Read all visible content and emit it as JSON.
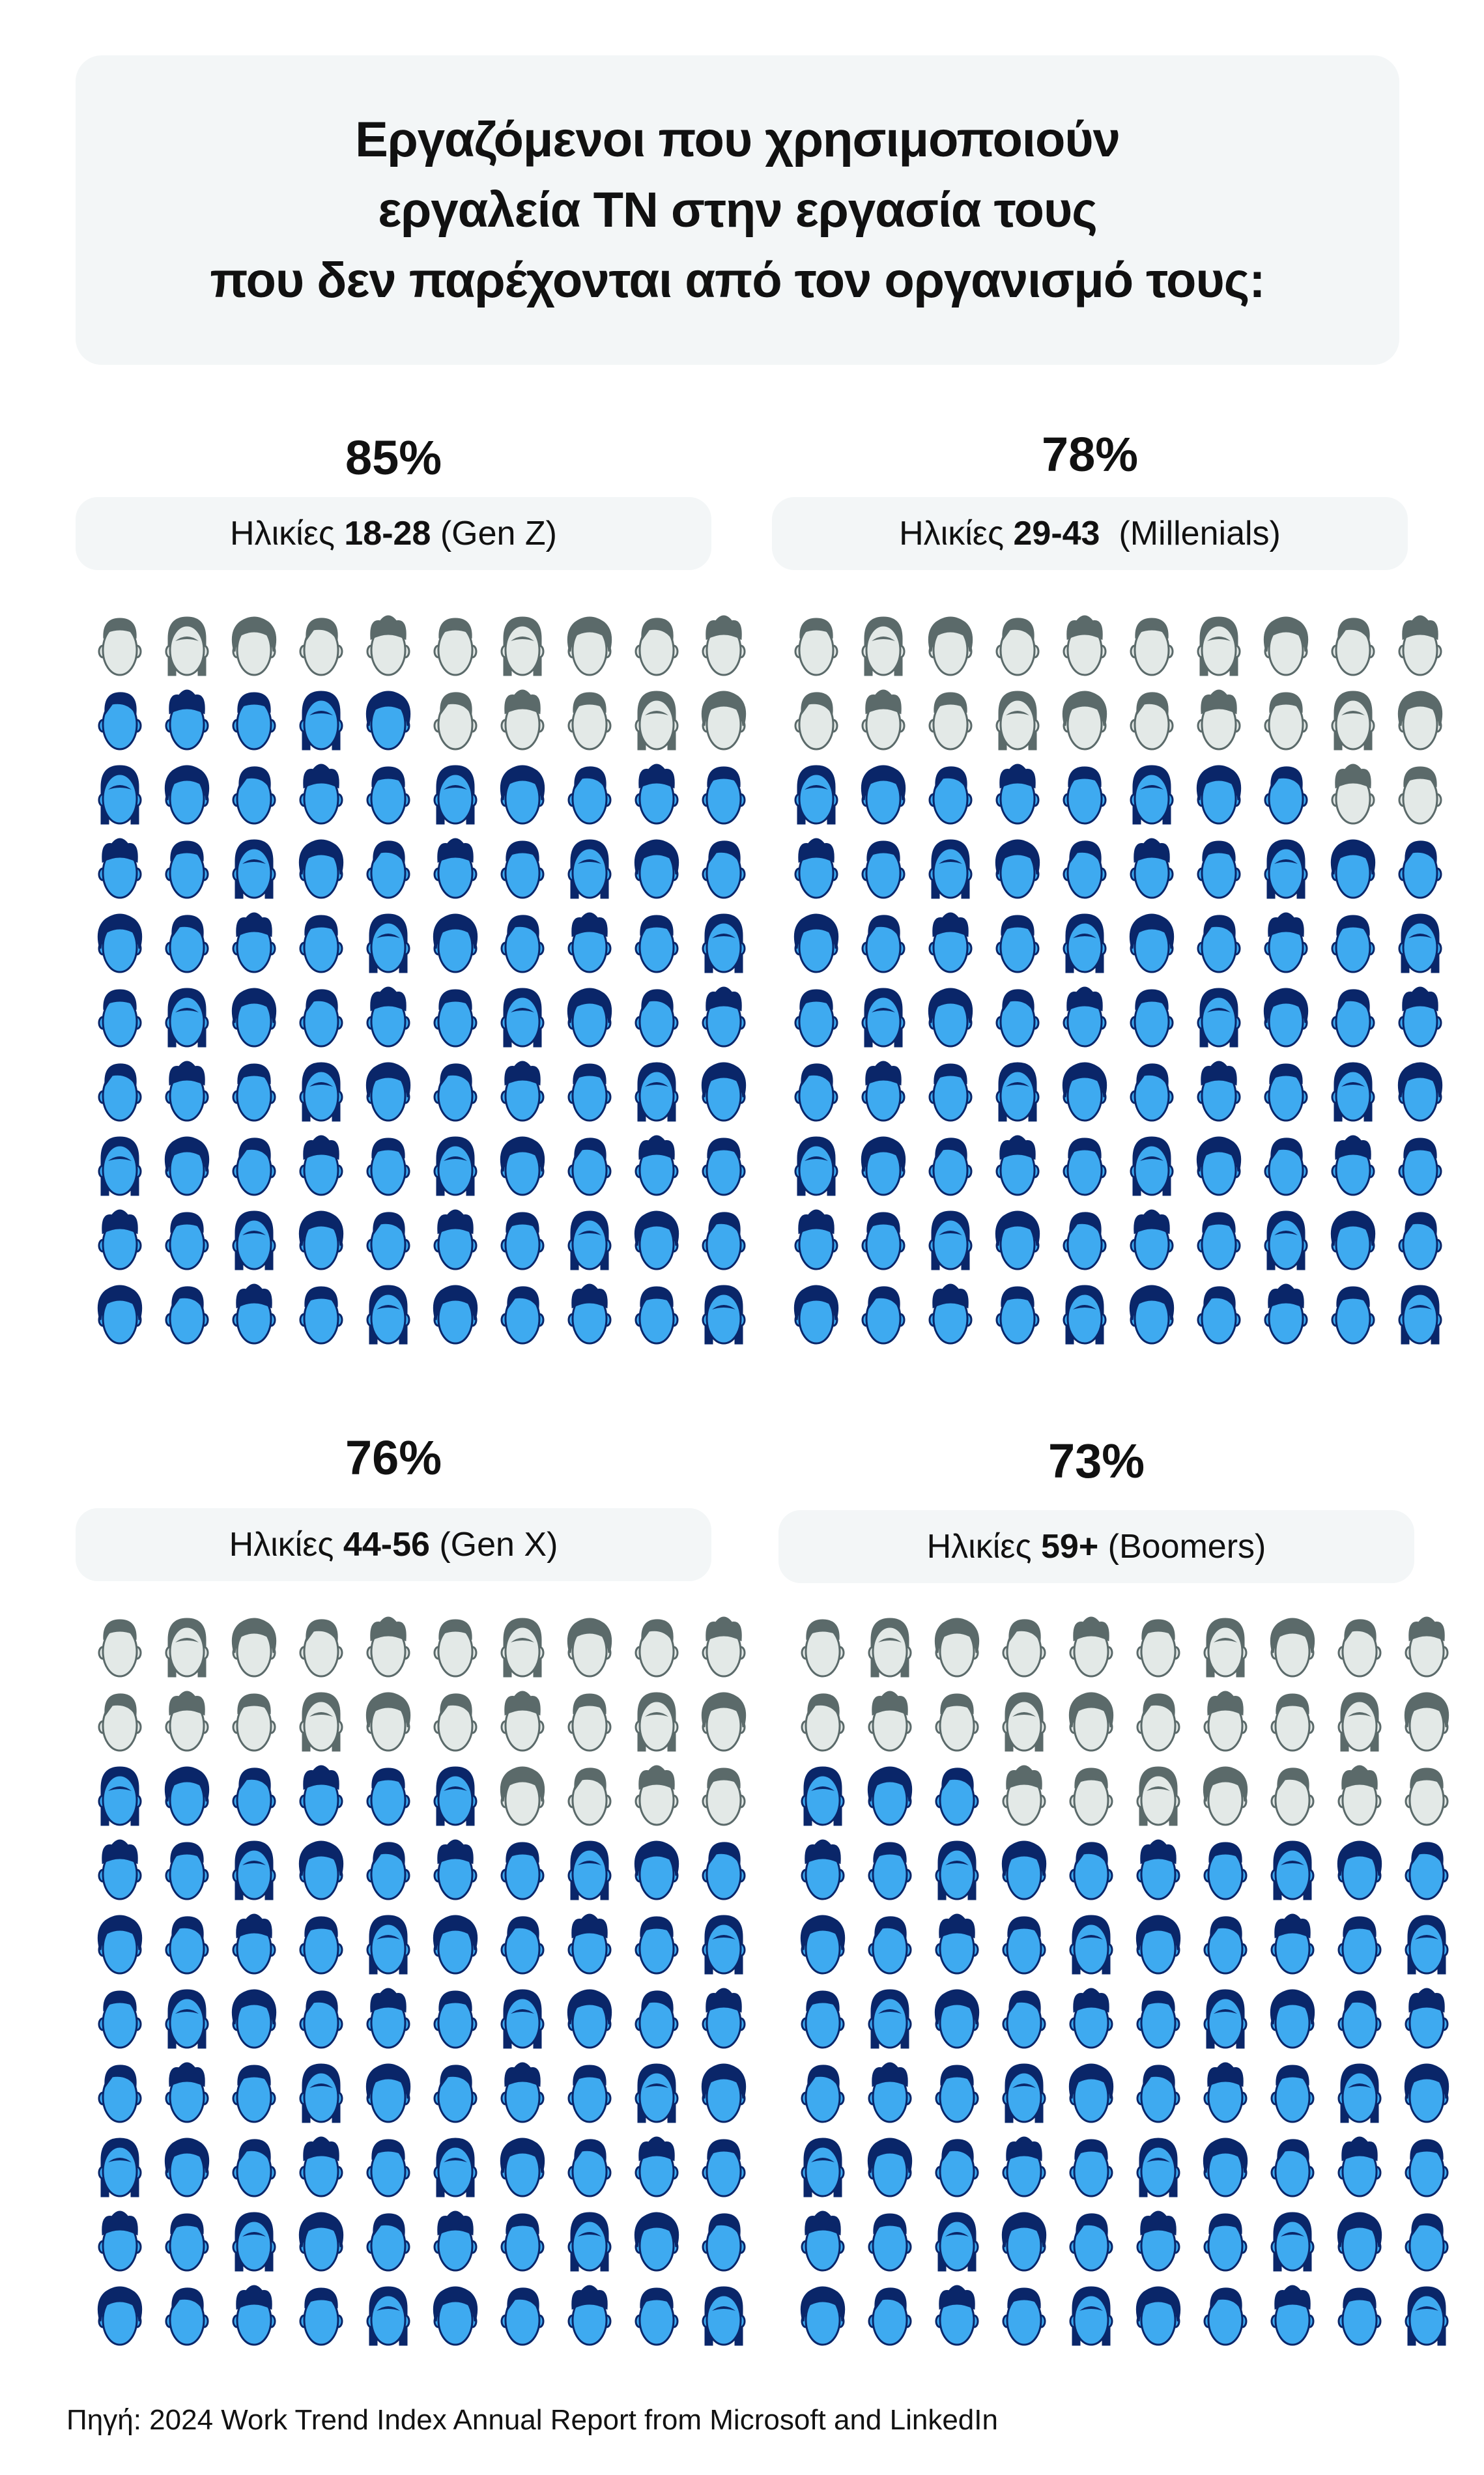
{
  "title": {
    "lines": [
      "Εργαζόμενοι που χρησιμοποιούν",
      "εργαλεία ΤΝ στην εργασία τους",
      "που δεν παρέχονται από τον οργανισμό τους:"
    ]
  },
  "colors": {
    "used_face": "#3eaaf0",
    "used_hair": "#0a2669",
    "not_used_face": "#e3e9e7",
    "not_used_hair": "#5b6a6a",
    "stroke_used": "#0a2669",
    "stroke_not_used": "#5b6a6a"
  },
  "panels": [
    {
      "percent": "85%",
      "label_prefix": "Ηλικίες ",
      "label_bold": "18-28",
      "label_suffix": " (Gen Z)"
    },
    {
      "percent": "78%",
      "label_prefix": "Ηλικίες ",
      "label_bold": "29-43",
      "label_suffix": "  (Millenials)"
    },
    {
      "percent": "76%",
      "label_prefix": "Ηλικίες ",
      "label_bold": "44-56",
      "label_suffix": " (Gen X)"
    },
    {
      "percent": "73%",
      "label_prefix": "Ηλικίες ",
      "label_bold": "59+",
      "label_suffix": " (Boomers)"
    }
  ],
  "chart_data": {
    "type": "pictogram",
    "title": "Εργαζόμενοι που χρησιμοποιούν εργαλεία ΤΝ στην εργασία τους που δεν παρέχονται από τον οργανισμό τους:",
    "categories": [
      "18-28 (Gen Z)",
      "29-43 (Millenials)",
      "44-56 (Gen X)",
      "59+ (Boomers)"
    ],
    "values": [
      85,
      78,
      76,
      73
    ],
    "unit": "%",
    "icons_per_grid": 100,
    "grid": [
      10,
      10
    ]
  },
  "source": "Πηγή: 2024 Work Trend Index Annual Report from Microsoft and LinkedIn"
}
